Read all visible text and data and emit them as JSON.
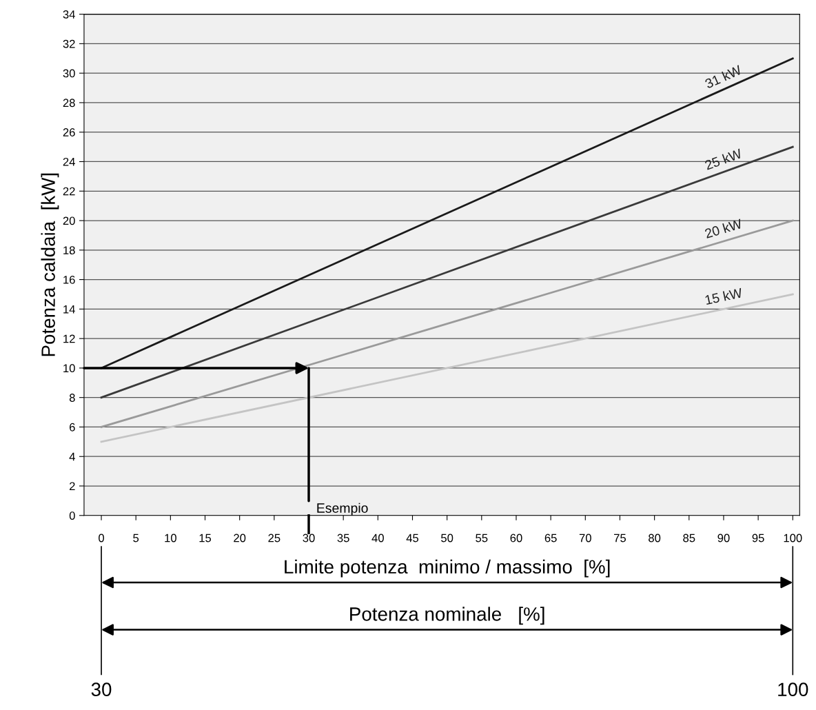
{
  "chart_data": {
    "type": "line",
    "ylabel": "Potenza caldaia  [kW]",
    "xlabel": "Limite potenza  minimo / massimo  [%]",
    "x2label": "Potenza nominale   [%]",
    "x": [
      0,
      100
    ],
    "series": [
      {
        "name": "31 kW",
        "color": "#1a1a1a",
        "values": [
          10,
          31
        ]
      },
      {
        "name": "25 kW",
        "color": "#3a3a3a",
        "values": [
          8,
          25
        ]
      },
      {
        "name": "20 kW",
        "color": "#9a9a9a",
        "values": [
          6,
          20
        ]
      },
      {
        "name": "15 kW",
        "color": "#c4c4c4",
        "values": [
          5,
          15
        ]
      }
    ],
    "xlim": [
      -2.5,
      101
    ],
    "xticks": [
      0,
      5,
      10,
      15,
      20,
      25,
      30,
      35,
      40,
      45,
      50,
      55,
      60,
      65,
      70,
      75,
      80,
      85,
      90,
      95,
      100
    ],
    "ylim": [
      0,
      34
    ],
    "yticks": [
      0,
      2,
      4,
      6,
      8,
      10,
      12,
      14,
      16,
      18,
      20,
      22,
      24,
      26,
      28,
      30,
      32,
      34
    ],
    "x2lim": [
      30,
      100
    ],
    "x2ticks": [
      30,
      100
    ],
    "annotations": [
      {
        "text": "Esempio",
        "x": 30,
        "y": 10
      }
    ],
    "grid": "y",
    "legend": false,
    "marker": "none",
    "line_style": "solid"
  }
}
